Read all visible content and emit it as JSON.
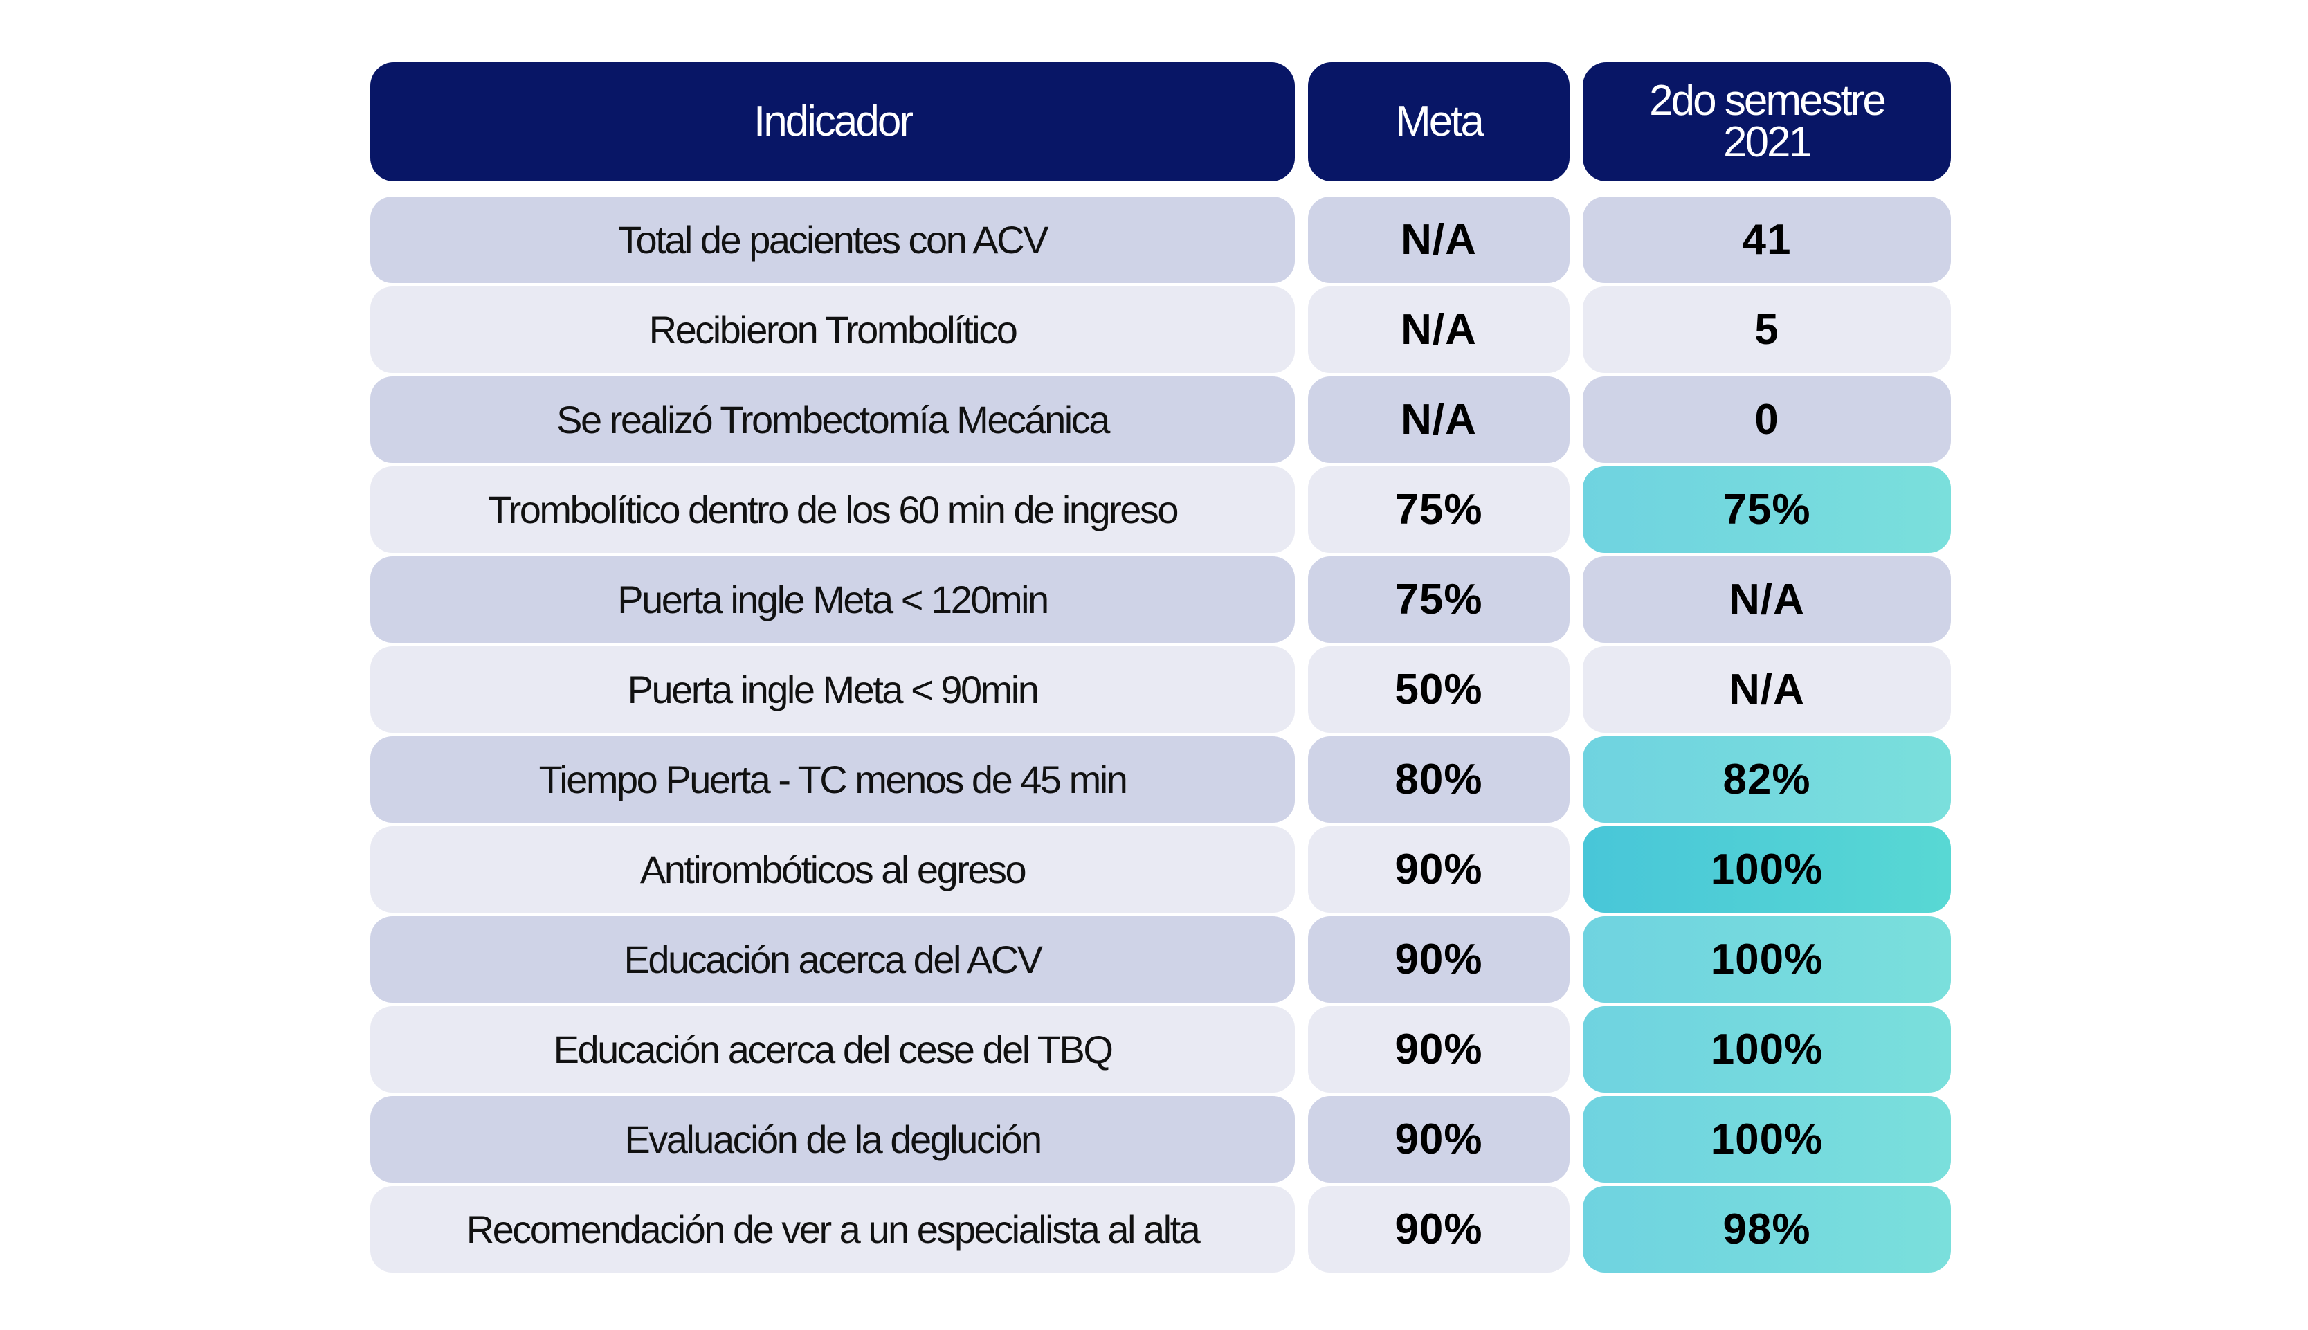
{
  "header": {
    "indicador": "Indicador",
    "meta": "Meta",
    "semestre_line1": "2do semestre",
    "semestre_line2": "2021"
  },
  "colors": {
    "header_bg": "#081666",
    "row_odd": "#cfd3e7",
    "row_even": "#e9eaf3",
    "highlight": "#6fd3e0",
    "highlight_strong": "#48c6d8",
    "highlight_text": "#0c6468"
  },
  "rows": [
    {
      "indicador": "Total de pacientes con ACV",
      "meta": "N/A",
      "valor": "41",
      "highlight": "none"
    },
    {
      "indicador": "Recibieron Trombolítico",
      "meta": "N/A",
      "valor": "5",
      "highlight": "none"
    },
    {
      "indicador": "Se realizó Trombectomía Mecánica",
      "meta": "N/A",
      "valor": "0",
      "highlight": "none"
    },
    {
      "indicador": "Trombolítico dentro de los 60 min de ingreso",
      "meta": "75%",
      "valor": "75%",
      "highlight": "hi"
    },
    {
      "indicador": "Puerta ingle Meta < 120min",
      "meta": "75%",
      "valor": "N/A",
      "highlight": "none"
    },
    {
      "indicador": "Puerta ingle Meta < 90min",
      "meta": "50%",
      "valor": "N/A",
      "highlight": "none"
    },
    {
      "indicador": "Tiempo Puerta - TC menos de 45 min",
      "meta": "80%",
      "valor": "82%",
      "highlight": "hi"
    },
    {
      "indicador": "Antirombóticos al egreso",
      "meta": "90%",
      "valor": "100%",
      "highlight": "hi2"
    },
    {
      "indicador": "Educación acerca del ACV",
      "meta": "90%",
      "valor": "100%",
      "highlight": "hi"
    },
    {
      "indicador": "Educación acerca del cese del TBQ",
      "meta": "90%",
      "valor": "100%",
      "highlight": "hi"
    },
    {
      "indicador": "Evaluación de la deglución",
      "meta": "90%",
      "valor": "100%",
      "highlight": "hi"
    },
    {
      "indicador": "Recomendación de ver a un especialista al alta",
      "meta": "90%",
      "valor": "98%",
      "highlight": "hi"
    }
  ]
}
